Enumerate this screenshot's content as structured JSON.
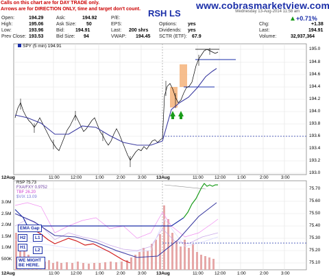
{
  "header": {
    "site": "www.cobrasmarketview.com",
    "symbol": "RSH LS",
    "date": "Wednesday 13-Aug-2014 11:58 am",
    "pct_change": "+0.71%",
    "notes": [
      "Calls on this chart are for DAY TRADE only.",
      "Arrows are for DIRECTION ONLY, time and target don't count."
    ],
    "quote": {
      "open_label": "Open:",
      "open": "194.29",
      "ask_label": "Ask:",
      "ask": "194.92",
      "pe_label": "P/E:",
      "pe": "",
      "high_label": "High:",
      "high": "195.06",
      "asksize_label": "Ask Size:",
      "asksize": "50",
      "eps_label": "EPS:",
      "eps": "",
      "options_label": "Options:",
      "options": "yes",
      "chg_label": "Chg:",
      "chg": "+1.38",
      "low_label": "Low:",
      "low": "193.96",
      "bid_label": "Bid:",
      "bid": "194.91",
      "last_label": "Last:",
      "last": "200 shrs",
      "dividends_label": "Dividends:",
      "dividends": "yes",
      "last2_label": "Last:",
      "last2": "194.91",
      "prev_label": "Prev Close:",
      "prev": "193.53",
      "bidsize_label": "Bid Size:",
      "bidsize": "94",
      "vwap_label": "VWAP:",
      "vwap": "194.45",
      "sctr_label": "SCTR (ETF):",
      "sctr": "67.9",
      "volume_label": "Volume:",
      "volume": "32,937,364"
    }
  },
  "price_panel": {
    "legend": "SPY (5 min) 194.91",
    "y_ticks": [
      "195.0",
      "194.8",
      "194.6",
      "194.4",
      "194.2",
      "194.0",
      "193.8",
      "193.6",
      "193.4",
      "193.2",
      "193.0"
    ],
    "x_ticks": [
      "12Aug",
      "11:00",
      "12:00",
      "1:00",
      "2:00",
      "3:00",
      "13Aug",
      "11:00",
      "12:00",
      "1:00",
      "2:00",
      "3:00"
    ]
  },
  "lower_panel": {
    "legend": {
      "rsp": "RSP 75.73",
      "fxa": "FXA/FXY 0.9752",
      "tbf": "TBF 26.20",
      "vix": "$VIX 13.09"
    },
    "y_ticks_right": [
      "75.70",
      "75.60",
      "75.50",
      "75.40",
      "75.30",
      "75.20",
      "75.10"
    ],
    "y_ticks_left": [
      "3.0M",
      "2.5M",
      "2.0M",
      "1.5M",
      "1.0M",
      "500K"
    ],
    "x_ticks": [
      "12Aug",
      "11:00",
      "12:00",
      "1:00",
      "2:00",
      "3:00",
      "13Aug",
      "11:00",
      "12:00",
      "1:00",
      "2:00",
      "3:00"
    ],
    "labels": {
      "ema": "EMA Gap",
      "h2": "H2",
      "h1": "H1",
      "l1": "L1",
      "l2": "L2",
      "we_might": "WE MIGHT BE HERE."
    }
  },
  "colors": {
    "accent": "#1a2ea8",
    "up": "#1a9c1a",
    "down": "#d11a1a",
    "ma": "#3a3aa0",
    "volume": "#e6a8a8",
    "highlight": "#f5b37a"
  }
}
